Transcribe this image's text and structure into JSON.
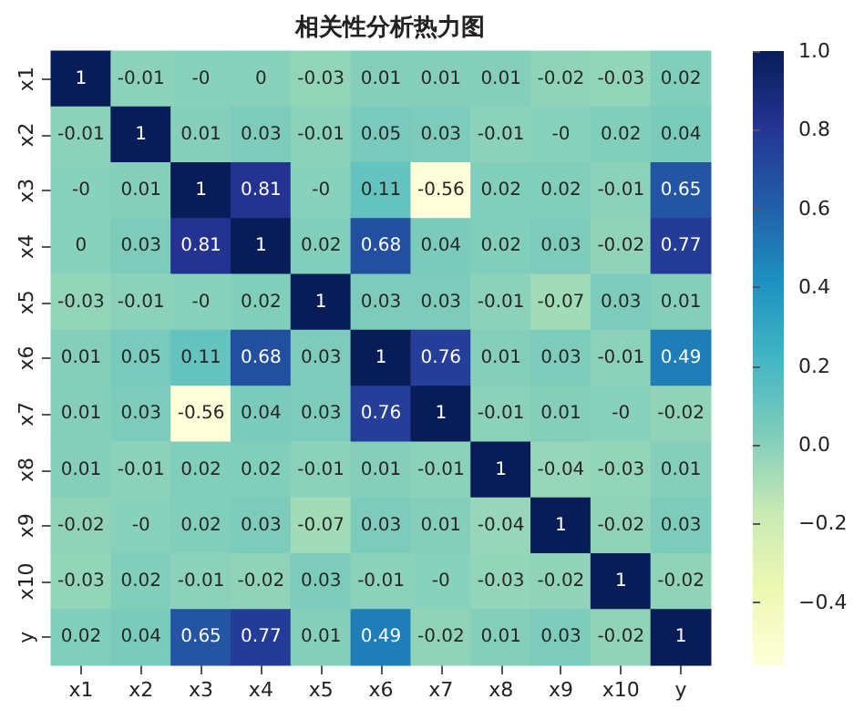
{
  "chart_data": {
    "type": "heatmap",
    "title": "相关性分析热力图",
    "categories": [
      "x1",
      "x2",
      "x3",
      "x4",
      "x5",
      "x6",
      "x7",
      "x8",
      "x9",
      "x10",
      "y"
    ],
    "y_categories": [
      "x1",
      "x2",
      "x3",
      "x4",
      "x5",
      "x6",
      "x7",
      "x8",
      "x9",
      "x10",
      "y"
    ],
    "cells": [
      [
        1,
        -0.01,
        0,
        0,
        -0.03,
        0.01,
        0.01,
        0.01,
        -0.02,
        -0.03,
        0.02
      ],
      [
        -0.01,
        1,
        0.01,
        0.03,
        -0.01,
        0.05,
        0.03,
        -0.01,
        0,
        0.02,
        0.04
      ],
      [
        0,
        0.01,
        1,
        0.81,
        0,
        0.11,
        -0.56,
        0.02,
        0.02,
        -0.01,
        0.65
      ],
      [
        0,
        0.03,
        0.81,
        1,
        0.02,
        0.68,
        0.04,
        0.02,
        0.03,
        -0.02,
        0.77
      ],
      [
        -0.03,
        -0.01,
        0,
        0.02,
        1,
        0.03,
        0.03,
        -0.01,
        -0.07,
        0.03,
        0.01
      ],
      [
        0.01,
        0.05,
        0.11,
        0.68,
        0.03,
        1,
        0.76,
        0.01,
        0.03,
        -0.01,
        0.49
      ],
      [
        0.01,
        0.03,
        -0.56,
        0.04,
        0.03,
        0.76,
        1,
        -0.01,
        0.01,
        0,
        -0.02
      ],
      [
        0.01,
        -0.01,
        0.02,
        0.02,
        -0.01,
        0.01,
        -0.01,
        1,
        -0.04,
        -0.03,
        0.01
      ],
      [
        -0.02,
        0,
        0.02,
        0.03,
        -0.07,
        0.03,
        0.01,
        -0.04,
        1,
        -0.02,
        0.03
      ],
      [
        -0.03,
        0.02,
        -0.01,
        -0.02,
        0.03,
        -0.01,
        0,
        -0.03,
        -0.02,
        1,
        -0.02
      ],
      [
        0.02,
        0.04,
        0.65,
        0.77,
        0.01,
        0.49,
        -0.02,
        0.01,
        0.03,
        -0.02,
        1
      ]
    ],
    "cell_labels": [
      [
        "1",
        "-0.01",
        "-0",
        "0",
        "-0.03",
        "0.01",
        "0.01",
        "0.01",
        "-0.02",
        "-0.03",
        "0.02"
      ],
      [
        "-0.01",
        "1",
        "0.01",
        "0.03",
        "-0.01",
        "0.05",
        "0.03",
        "-0.01",
        "-0",
        "0.02",
        "0.04"
      ],
      [
        "-0",
        "0.01",
        "1",
        "0.81",
        "-0",
        "0.11",
        "-0.56",
        "0.02",
        "0.02",
        "-0.01",
        "0.65"
      ],
      [
        "0",
        "0.03",
        "0.81",
        "1",
        "0.02",
        "0.68",
        "0.04",
        "0.02",
        "0.03",
        "-0.02",
        "0.77"
      ],
      [
        "-0.03",
        "-0.01",
        "-0",
        "0.02",
        "1",
        "0.03",
        "0.03",
        "-0.01",
        "-0.07",
        "0.03",
        "0.01"
      ],
      [
        "0.01",
        "0.05",
        "0.11",
        "0.68",
        "0.03",
        "1",
        "0.76",
        "0.01",
        "0.03",
        "-0.01",
        "0.49"
      ],
      [
        "0.01",
        "0.03",
        "-0.56",
        "0.04",
        "0.03",
        "0.76",
        "1",
        "-0.01",
        "0.01",
        "-0",
        "-0.02"
      ],
      [
        "0.01",
        "-0.01",
        "0.02",
        "0.02",
        "-0.01",
        "0.01",
        "-0.01",
        "1",
        "-0.04",
        "-0.03",
        "0.01"
      ],
      [
        "-0.02",
        "-0",
        "0.02",
        "0.03",
        "-0.07",
        "0.03",
        "0.01",
        "-0.04",
        "1",
        "-0.02",
        "0.03"
      ],
      [
        "-0.03",
        "0.02",
        "-0.01",
        "-0.02",
        "0.03",
        "-0.01",
        "-0",
        "-0.03",
        "-0.02",
        "1",
        "-0.02"
      ],
      [
        "0.02",
        "0.04",
        "0.65",
        "0.77",
        "0.01",
        "0.49",
        "-0.02",
        "0.01",
        "0.03",
        "-0.02",
        "1"
      ]
    ],
    "clim": [
      -0.56,
      1
    ],
    "cticks": [
      {
        "value": -0.4,
        "label": "−0.4"
      },
      {
        "value": -0.2,
        "label": "−0.2"
      },
      {
        "value": 0,
        "label": "0.0"
      },
      {
        "value": 0.2,
        "label": "0.2"
      },
      {
        "value": 0.4,
        "label": "0.4"
      },
      {
        "value": 0.6,
        "label": "0.6"
      },
      {
        "value": 0.8,
        "label": "0.8"
      },
      {
        "value": 1,
        "label": "1.0"
      }
    ]
  }
}
